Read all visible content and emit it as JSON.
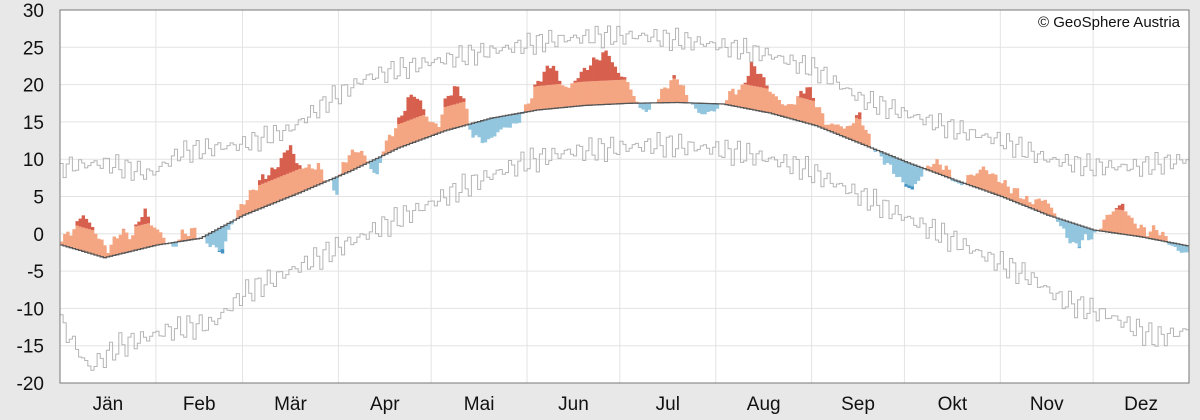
{
  "chart_data": {
    "type": "bar",
    "credit": "© GeoSphere Austria",
    "ylim": [
      -20,
      30
    ],
    "y_ticks": [
      30,
      25,
      20,
      15,
      10,
      5,
      0,
      -5,
      -10,
      -15,
      -20
    ],
    "months": [
      "Jän",
      "Feb",
      "Mär",
      "Apr",
      "Mai",
      "Jun",
      "Jul",
      "Aug",
      "Sep",
      "Okt",
      "Nov",
      "Dez"
    ],
    "grid": true,
    "baseline_keypoints": [
      [
        1,
        -1.5
      ],
      [
        15,
        -3.2
      ],
      [
        32,
        -1.5
      ],
      [
        46,
        -0.6
      ],
      [
        60,
        2.5
      ],
      [
        78,
        5.5
      ],
      [
        95,
        8.5
      ],
      [
        110,
        11.5
      ],
      [
        125,
        13.8
      ],
      [
        140,
        15.5
      ],
      [
        155,
        16.6
      ],
      [
        170,
        17.2
      ],
      [
        185,
        17.5
      ],
      [
        200,
        17.6
      ],
      [
        215,
        17.4
      ],
      [
        230,
        16.2
      ],
      [
        245,
        14.5
      ],
      [
        260,
        12
      ],
      [
        275,
        9.5
      ],
      [
        290,
        7.2
      ],
      [
        305,
        5
      ],
      [
        320,
        2.5
      ],
      [
        335,
        0.5
      ],
      [
        350,
        -0.4
      ],
      [
        365,
        -1.6
      ]
    ],
    "max_keypoints": [
      [
        1,
        9
      ],
      [
        15,
        9.5
      ],
      [
        30,
        8
      ],
      [
        40,
        11
      ],
      [
        60,
        12
      ],
      [
        75,
        14
      ],
      [
        88,
        18
      ],
      [
        100,
        21
      ],
      [
        120,
        23
      ],
      [
        140,
        24.5
      ],
      [
        160,
        26
      ],
      [
        175,
        26.5
      ],
      [
        190,
        26.5
      ],
      [
        210,
        25.5
      ],
      [
        230,
        24
      ],
      [
        245,
        22
      ],
      [
        260,
        18
      ],
      [
        275,
        16
      ],
      [
        290,
        14
      ],
      [
        305,
        12.5
      ],
      [
        320,
        10
      ],
      [
        335,
        9
      ],
      [
        350,
        9
      ],
      [
        365,
        10
      ]
    ],
    "min_keypoints": [
      [
        1,
        -12
      ],
      [
        10,
        -18
      ],
      [
        20,
        -15
      ],
      [
        35,
        -13
      ],
      [
        50,
        -12
      ],
      [
        60,
        -8
      ],
      [
        75,
        -5
      ],
      [
        90,
        -2
      ],
      [
        105,
        1
      ],
      [
        120,
        4
      ],
      [
        135,
        7
      ],
      [
        150,
        9.5
      ],
      [
        165,
        11
      ],
      [
        180,
        11.5
      ],
      [
        195,
        12
      ],
      [
        210,
        11.5
      ],
      [
        225,
        10.5
      ],
      [
        240,
        9
      ],
      [
        255,
        6
      ],
      [
        270,
        3
      ],
      [
        285,
        0
      ],
      [
        300,
        -3
      ],
      [
        315,
        -6
      ],
      [
        325,
        -9
      ],
      [
        340,
        -11
      ],
      [
        355,
        -14
      ],
      [
        365,
        -13
      ]
    ],
    "anomaly_keypoints": [
      [
        1,
        1
      ],
      [
        4,
        2
      ],
      [
        8,
        5
      ],
      [
        12,
        3
      ],
      [
        16,
        1
      ],
      [
        20,
        3
      ],
      [
        24,
        2
      ],
      [
        26,
        4
      ],
      [
        28,
        5
      ],
      [
        30,
        3
      ],
      [
        33,
        1.5
      ],
      [
        37,
        -0.8
      ],
      [
        40,
        1
      ],
      [
        44,
        1.2
      ],
      [
        48,
        -1
      ],
      [
        50,
        -2
      ],
      [
        53,
        -3.5
      ],
      [
        55,
        -1
      ],
      [
        58,
        1
      ],
      [
        62,
        2.5
      ],
      [
        66,
        4
      ],
      [
        70,
        4.5
      ],
      [
        73,
        6
      ],
      [
        75,
        7
      ],
      [
        77,
        4
      ],
      [
        80,
        3
      ],
      [
        84,
        2.5
      ],
      [
        87,
        0
      ],
      [
        90,
        -2
      ],
      [
        92,
        1.5
      ],
      [
        95,
        2.5
      ],
      [
        98,
        2
      ],
      [
        101,
        -0.8
      ],
      [
        103,
        -2.5
      ],
      [
        105,
        1
      ],
      [
        107,
        2
      ],
      [
        110,
        3.5
      ],
      [
        113,
        6
      ],
      [
        115,
        6.5
      ],
      [
        117,
        5
      ],
      [
        120,
        2
      ],
      [
        123,
        1
      ],
      [
        125,
        4
      ],
      [
        128,
        5.5
      ],
      [
        131,
        4
      ],
      [
        133,
        -0.8
      ],
      [
        136,
        -2.5
      ],
      [
        139,
        -3
      ],
      [
        142,
        -2
      ],
      [
        145,
        -1.5
      ],
      [
        148,
        -1.5
      ],
      [
        151,
        0.5
      ],
      [
        154,
        3
      ],
      [
        157,
        5
      ],
      [
        160,
        6
      ],
      [
        162,
        3.5
      ],
      [
        165,
        2.5
      ],
      [
        168,
        4
      ],
      [
        172,
        5.5
      ],
      [
        175,
        6.5
      ],
      [
        178,
        7
      ],
      [
        180,
        4.5
      ],
      [
        182,
        4
      ],
      [
        185,
        2
      ],
      [
        188,
        -0.8
      ],
      [
        191,
        -1
      ],
      [
        194,
        0.8
      ],
      [
        197,
        2.5
      ],
      [
        200,
        3.5
      ],
      [
        203,
        1
      ],
      [
        206,
        -1
      ],
      [
        209,
        -1.5
      ],
      [
        212,
        -0.8
      ],
      [
        214,
        -0.5
      ],
      [
        216,
        1
      ],
      [
        218,
        2
      ],
      [
        221,
        2.5
      ],
      [
        224,
        6
      ],
      [
        227,
        5
      ],
      [
        230,
        3
      ],
      [
        233,
        2
      ],
      [
        236,
        1.5
      ],
      [
        239,
        3
      ],
      [
        242,
        5
      ],
      [
        245,
        3
      ],
      [
        248,
        1
      ],
      [
        250,
        0.8
      ],
      [
        252,
        1.5
      ],
      [
        254,
        1
      ],
      [
        257,
        2.5
      ],
      [
        259,
        4
      ],
      [
        261,
        2
      ],
      [
        263,
        0.5
      ],
      [
        265,
        -0.5
      ],
      [
        267,
        -1
      ],
      [
        270,
        -2
      ],
      [
        273,
        -3
      ],
      [
        276,
        -3.5
      ],
      [
        279,
        -1
      ],
      [
        282,
        1
      ],
      [
        285,
        1.5
      ],
      [
        288,
        0.8
      ],
      [
        291,
        -0.8
      ],
      [
        294,
        1
      ],
      [
        297,
        2
      ],
      [
        299,
        3
      ],
      [
        302,
        2.5
      ],
      [
        305,
        2
      ],
      [
        308,
        1.5
      ],
      [
        310,
        1.5
      ],
      [
        312,
        1
      ],
      [
        314,
        0.8
      ],
      [
        317,
        1.5
      ],
      [
        319,
        2
      ],
      [
        322,
        0.5
      ],
      [
        324,
        -1
      ],
      [
        326,
        -2
      ],
      [
        328,
        -3
      ],
      [
        330,
        -2.5
      ],
      [
        332,
        -1.5
      ],
      [
        335,
        -0.8
      ],
      [
        338,
        1.5
      ],
      [
        341,
        3
      ],
      [
        344,
        4
      ],
      [
        347,
        2
      ],
      [
        349,
        1.5
      ],
      [
        352,
        0.8
      ],
      [
        355,
        1.5
      ],
      [
        358,
        0.5
      ],
      [
        361,
        -0.8
      ],
      [
        364,
        -1
      ]
    ]
  }
}
